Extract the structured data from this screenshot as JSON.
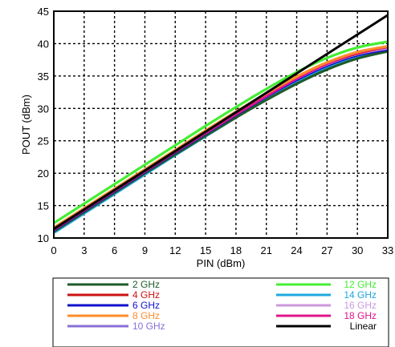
{
  "chart_data": {
    "type": "line",
    "xlabel": "PIN (dBm)",
    "ylabel": "POUT (dBm)",
    "xlim": [
      0,
      33
    ],
    "ylim": [
      10,
      45
    ],
    "xticks": [
      0,
      3,
      6,
      9,
      12,
      15,
      18,
      21,
      24,
      27,
      30,
      33
    ],
    "yticks": [
      10,
      15,
      20,
      25,
      30,
      35,
      40,
      45
    ],
    "grid": true,
    "legend_position": "below",
    "series": [
      {
        "name": "2 GHz",
        "color": "#1f5a2a",
        "x": [
          0,
          3,
          6,
          9,
          12,
          15,
          18,
          21,
          24,
          27,
          30,
          33
        ],
        "y": [
          11.0,
          14.0,
          17.0,
          20.0,
          22.9,
          25.8,
          28.6,
          31.3,
          33.8,
          36.0,
          37.7,
          38.8
        ]
      },
      {
        "name": "4 GHz",
        "color": "#cc1111",
        "x": [
          0,
          3,
          6,
          9,
          12,
          15,
          18,
          21,
          24,
          27,
          30,
          33
        ],
        "y": [
          11.5,
          14.5,
          17.5,
          20.5,
          23.5,
          26.4,
          29.3,
          32.1,
          34.7,
          36.9,
          38.5,
          39.5
        ]
      },
      {
        "name": "6 GHz",
        "color": "#1111cc",
        "x": [
          0,
          3,
          6,
          9,
          12,
          15,
          18,
          21,
          24,
          27,
          30,
          33
        ],
        "y": [
          11.2,
          14.2,
          17.2,
          20.2,
          23.2,
          26.1,
          29.0,
          31.8,
          34.4,
          36.6,
          38.2,
          39.1
        ]
      },
      {
        "name": "8 GHz",
        "color": "#ff8c2a",
        "x": [
          0,
          3,
          6,
          9,
          12,
          15,
          18,
          21,
          24,
          27,
          30,
          33
        ],
        "y": [
          11.6,
          14.6,
          17.6,
          20.6,
          23.6,
          26.6,
          29.5,
          32.3,
          34.9,
          37.1,
          38.7,
          39.6
        ]
      },
      {
        "name": "10 GHz",
        "color": "#8a6fd6",
        "x": [
          0,
          3,
          6,
          9,
          12,
          15,
          18,
          21,
          24,
          27,
          30,
          33
        ],
        "y": [
          11.3,
          14.3,
          17.3,
          20.3,
          23.3,
          26.2,
          29.1,
          31.9,
          34.5,
          36.7,
          38.3,
          39.2
        ]
      },
      {
        "name": "12 GHz",
        "color": "#44ee33",
        "x": [
          0,
          3,
          6,
          9,
          12,
          15,
          18,
          21,
          24,
          27,
          30,
          33
        ],
        "y": [
          12.3,
          15.3,
          18.3,
          21.3,
          24.3,
          27.3,
          30.2,
          33.0,
          35.6,
          37.8,
          39.4,
          40.3
        ]
      },
      {
        "name": "14 GHz",
        "color": "#1ea8e0",
        "x": [
          0,
          3,
          6,
          9,
          12,
          15,
          18,
          21,
          24,
          27,
          30,
          33
        ],
        "y": [
          10.8,
          13.8,
          16.8,
          19.8,
          22.8,
          25.7,
          28.6,
          31.4,
          34.0,
          36.3,
          38.0,
          39.0
        ]
      },
      {
        "name": "16 GHz",
        "color": "#cc99dd",
        "x": [
          0,
          3,
          6,
          9,
          12,
          15,
          18,
          21,
          24,
          27,
          30,
          33
        ],
        "y": [
          11.4,
          14.4,
          17.4,
          20.4,
          23.4,
          26.3,
          29.2,
          32.0,
          34.6,
          36.8,
          38.4,
          39.3
        ]
      },
      {
        "name": "18 GHz",
        "color": "#e0158a",
        "x": [
          0,
          3,
          6,
          9,
          12,
          15,
          18,
          21,
          24,
          27,
          30,
          33
        ],
        "y": [
          11.3,
          14.3,
          17.3,
          20.3,
          23.3,
          26.2,
          29.1,
          31.9,
          34.6,
          36.9,
          38.6,
          39.5
        ]
      },
      {
        "name": "Linear",
        "color": "#000000",
        "x": [
          0,
          33
        ],
        "y": [
          11.4,
          44.4
        ]
      }
    ],
    "legend_columns": [
      [
        "2 GHz",
        "4 GHz",
        "6 GHz",
        "8 GHz",
        "10 GHz"
      ],
      [
        "12 GHz",
        "14 GHz",
        "16 GHz",
        "18 GHz",
        "Linear"
      ]
    ]
  }
}
